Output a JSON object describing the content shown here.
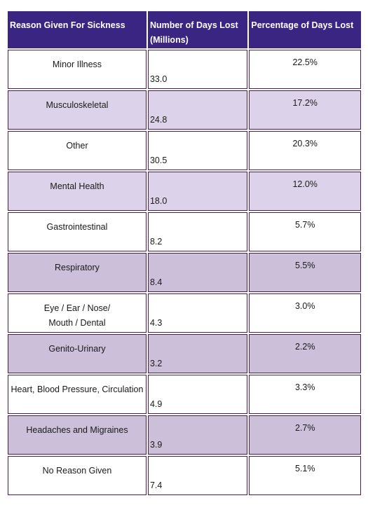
{
  "chart_data": {
    "type": "table",
    "columns": [
      "Reason Given For Sickness",
      "Number of Days Lost (Millions)",
      "Percentage of Days Lost"
    ],
    "rows": [
      {
        "reason": "Minor Illness",
        "days": "33.0",
        "pct": "22.5%",
        "shade": "plain"
      },
      {
        "reason": "Musculoskeletal",
        "days": "24.8",
        "pct": "17.2%",
        "shade": "light"
      },
      {
        "reason": "Other",
        "days": "30.5",
        "pct": "20.3%",
        "shade": "plain"
      },
      {
        "reason": "Mental Health",
        "days": "18.0",
        "pct": "12.0%",
        "shade": "light"
      },
      {
        "reason": "Gastrointestinal",
        "days": "8.2",
        "pct": "5.7%",
        "shade": "plain"
      },
      {
        "reason": "Respiratory",
        "days": "8.4",
        "pct": "5.5%",
        "shade": "mid"
      },
      {
        "reason": "Eye / Ear / Nose/\nMouth / Dental",
        "days": "4.3",
        "pct": "3.0%",
        "shade": "plain"
      },
      {
        "reason": "Genito-Urinary",
        "days": "3.2",
        "pct": "2.2%",
        "shade": "mid"
      },
      {
        "reason": "Heart, Blood Pressure, Circulation",
        "days": "4.9",
        "pct": "3.3%",
        "shade": "plain"
      },
      {
        "reason": "Headaches and Migraines",
        "days": "3.9",
        "pct": "2.7%",
        "shade": "mid"
      },
      {
        "reason": "No Reason Given",
        "days": "7.4",
        "pct": "5.1%",
        "shade": "plain"
      }
    ]
  },
  "colors": {
    "header_bg": "#3b2583",
    "header_text": "#ffffff",
    "row_light": "#dcd3ea",
    "row_mid": "#cbbfd9",
    "row_plain": "#ffffff",
    "border": "#4a1f47"
  }
}
